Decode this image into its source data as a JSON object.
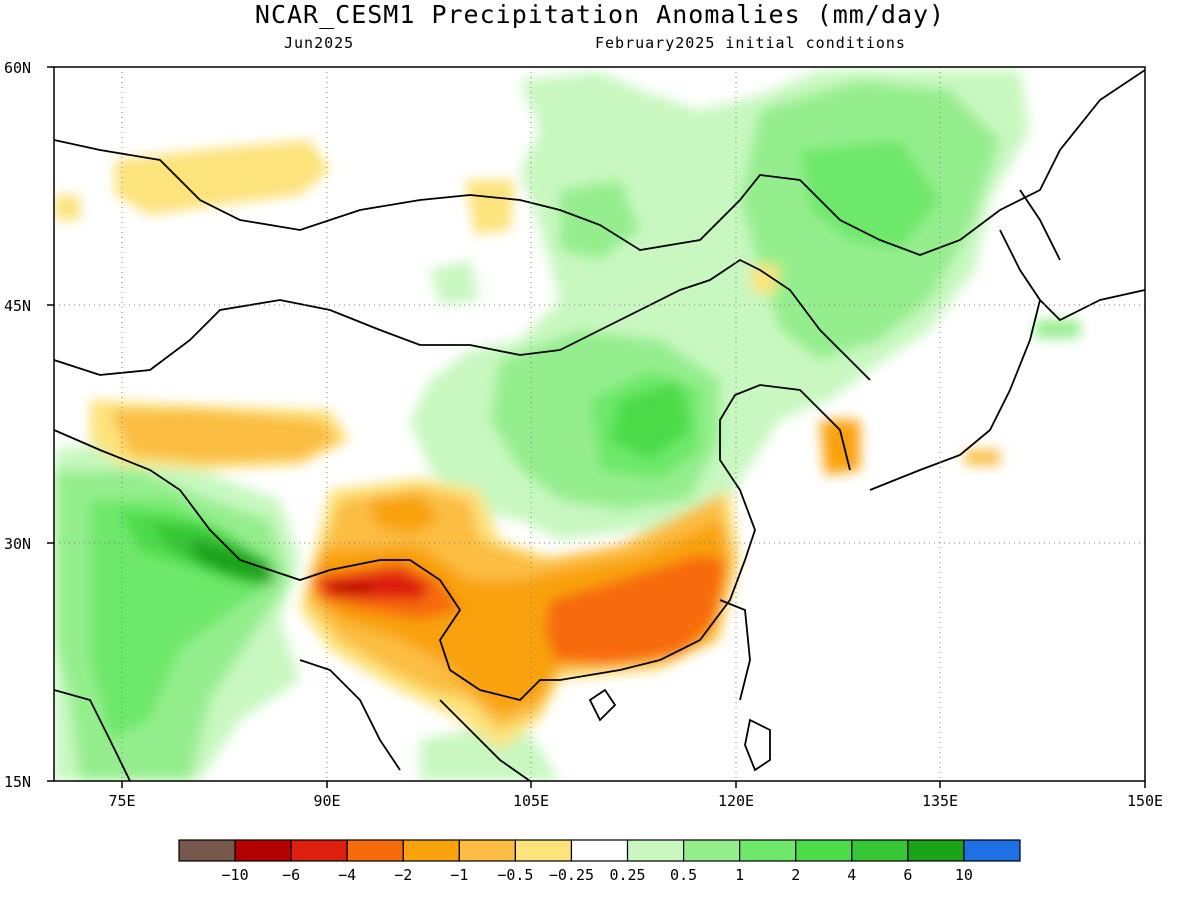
{
  "header": {
    "title": "NCAR_CESM1 Precipitation Anomalies (mm/day)",
    "left_subtitle": "Jun2025",
    "right_subtitle": "February2025 initial conditions"
  },
  "map": {
    "lat_labels": [
      "60N",
      "45N",
      "30N",
      "15N"
    ],
    "lon_labels": [
      "75E",
      "90E",
      "105E",
      "120E",
      "135E",
      "150E"
    ],
    "extent": {
      "lon": [
        70,
        150
      ],
      "lat": [
        15,
        60
      ]
    }
  },
  "colorbar": {
    "colors": [
      "#76584d",
      "#b30000",
      "#dd1f0f",
      "#f76b0a",
      "#f9a20b",
      "#fbbd43",
      "#fce37b",
      "#ffffff",
      "#c8f8c0",
      "#94ee8d",
      "#6ee86a",
      "#4cdb49",
      "#37c636",
      "#1aa21a",
      "#1f6fe5"
    ],
    "labels": [
      "−10",
      "−6",
      "−4",
      "−2",
      "−1",
      "−0.5",
      "−0.25",
      "0.25",
      "0.5",
      "1",
      "2",
      "4",
      "6",
      "10"
    ]
  }
}
